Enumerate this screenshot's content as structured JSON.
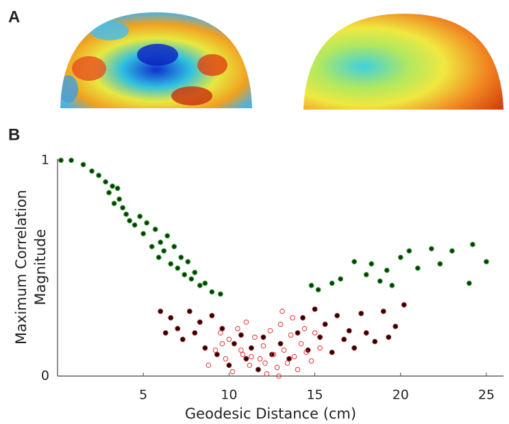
{
  "panel_labels": [
    "A",
    "B"
  ],
  "chart_data": {
    "type": "scatter",
    "xlabel": "Geodesic Distance (cm)",
    "ylabel": [
      "Maximum Correlation",
      "Magnitude"
    ],
    "xlim": [
      0,
      26
    ],
    "ylim": [
      0,
      1
    ],
    "xticks": [
      5,
      10,
      15,
      20,
      25
    ],
    "yticks": [
      0,
      1
    ],
    "grid": false,
    "series": [
      {
        "color": "#063806",
        "edgecolor": "#2f9a2f",
        "marker": "filled",
        "x": [
          0.2,
          0.8,
          1.5,
          2,
          2.4,
          2.8,
          3,
          3.2,
          3.3,
          3.5,
          3.6,
          3.8,
          4,
          4.2,
          4.5,
          4.8,
          5,
          5.2,
          5.5,
          5.7,
          5.9,
          6,
          6.2,
          6.4,
          6.6,
          6.8,
          7,
          7.2,
          7.4,
          7.6,
          7.8,
          8,
          8.3,
          8.6,
          9,
          9.5,
          14.8,
          15.2,
          16,
          16.5,
          17.3,
          18,
          18.3,
          18.8,
          19.2,
          19.5,
          20,
          20.5,
          21,
          21.8,
          22.3,
          23,
          24,
          24.2,
          25
        ],
        "values": [
          1,
          1,
          0.98,
          0.95,
          0.93,
          0.9,
          0.85,
          0.88,
          0.8,
          0.87,
          0.82,
          0.78,
          0.75,
          0.72,
          0.7,
          0.74,
          0.66,
          0.71,
          0.6,
          0.68,
          0.55,
          0.62,
          0.58,
          0.65,
          0.52,
          0.6,
          0.5,
          0.55,
          0.47,
          0.53,
          0.45,
          0.48,
          0.42,
          0.43,
          0.39,
          0.38,
          0.42,
          0.4,
          0.43,
          0.45,
          0.53,
          0.47,
          0.52,
          0.44,
          0.49,
          0.42,
          0.55,
          0.58,
          0.5,
          0.59,
          0.52,
          0.58,
          0.43,
          0.61,
          0.53
        ]
      },
      {
        "color": "#2a0000",
        "edgecolor": "#8b1a1a",
        "marker": "filled",
        "x": [
          6,
          6.3,
          6.6,
          7,
          7.3,
          7.7,
          8,
          8.3,
          8.6,
          9,
          9.3,
          9.6,
          10,
          10.3,
          10.7,
          11,
          11.3,
          11.7,
          12,
          12.5,
          13,
          13.5,
          14,
          14.3,
          14.6,
          15,
          15.3,
          15.6,
          16,
          16.3,
          16.7,
          17,
          17.3,
          17.7,
          18,
          18.5,
          19,
          19.3,
          19.7,
          20.2
        ],
        "values": [
          0.3,
          0.2,
          0.27,
          0.22,
          0.17,
          0.3,
          0.2,
          0.25,
          0.13,
          0.28,
          0.1,
          0.22,
          0.05,
          0.15,
          0.19,
          0.08,
          0.13,
          0.03,
          0.18,
          0.1,
          0.15,
          0.08,
          0.2,
          0.27,
          0.12,
          0.31,
          0.18,
          0.24,
          0.11,
          0.28,
          0.17,
          0.21,
          0.13,
          0.29,
          0.2,
          0.16,
          0.3,
          0.18,
          0.23,
          0.33
        ]
      },
      {
        "color": "#e03030",
        "edgecolor": "#e03030",
        "marker": "open",
        "x": [
          8.8,
          9.2,
          9.5,
          9.8,
          10,
          10.2,
          10.5,
          10.8,
          11,
          11.2,
          11.5,
          11.8,
          12,
          12.2,
          12.4,
          12.6,
          12.8,
          13,
          13.2,
          13.4,
          13.6,
          13.8,
          14,
          14.2,
          14.5,
          14.8,
          15,
          15.3,
          9.6,
          10.7,
          11.3,
          12.9,
          13.1,
          13.7,
          14.4,
          12.1
        ],
        "values": [
          0.05,
          0.12,
          0.2,
          0.08,
          0.17,
          0.02,
          0.22,
          0.1,
          0.25,
          0.05,
          0.18,
          0.08,
          0.14,
          0.01,
          0.21,
          0.1,
          0.04,
          0.24,
          0.12,
          0.06,
          0.19,
          0.09,
          0.03,
          0.15,
          0.11,
          0.07,
          0.2,
          0.13,
          0.15,
          0.12,
          0.09,
          0,
          0.3,
          0.27,
          0.22,
          0.06
        ]
      }
    ]
  }
}
